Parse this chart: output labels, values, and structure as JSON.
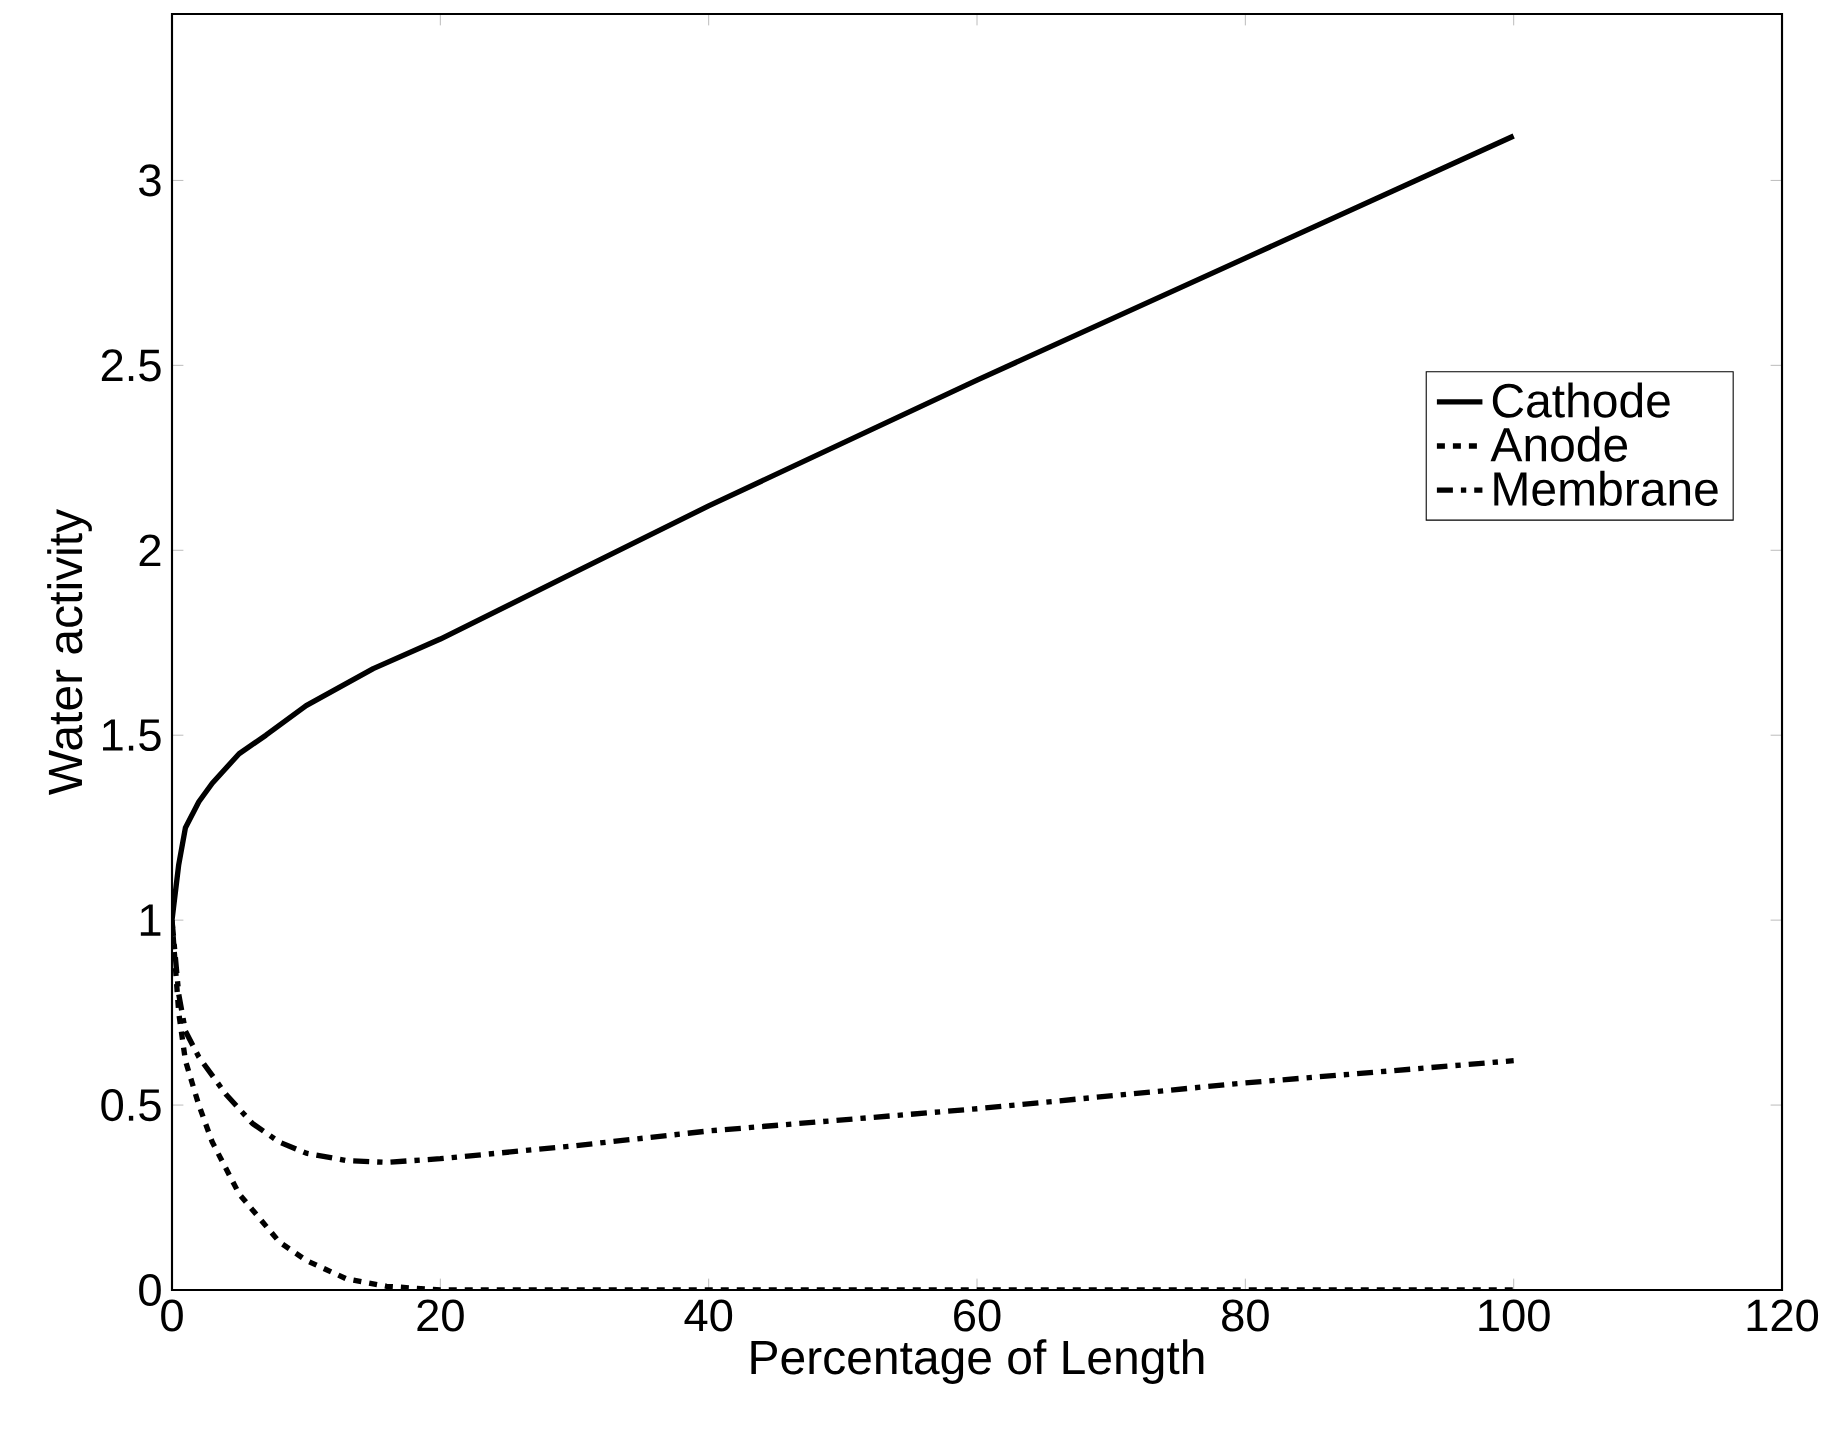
{
  "chart_data": {
    "type": "line",
    "xlabel": "Percentage of Length",
    "ylabel": "Water activity",
    "xlim": [
      0,
      120
    ],
    "xticks": [
      0,
      20,
      40,
      60,
      80,
      100,
      120
    ],
    "ylim": [
      0,
      3.45
    ],
    "yticks": [
      0,
      0.5,
      1,
      1.5,
      2,
      2.5,
      3
    ],
    "grid": false,
    "legend": "right",
    "marker": "none",
    "series": [
      {
        "name": "Cathode",
        "color": "#000000",
        "line_style": "solid",
        "x": [
          0,
          0.5,
          1,
          2,
          3,
          5,
          7,
          10,
          15,
          20,
          30,
          40,
          60,
          80,
          100
        ],
        "values": [
          1,
          1.15,
          1.25,
          1.32,
          1.37,
          1.45,
          1.5,
          1.58,
          1.68,
          1.76,
          1.94,
          2.12,
          2.46,
          2.79,
          3.12
        ]
      },
      {
        "name": "Anode",
        "color": "#000000",
        "line_style": "dashed",
        "x": [
          0,
          0.5,
          1,
          2,
          3,
          5,
          8,
          10,
          13,
          16,
          20,
          40,
          60,
          80,
          100
        ],
        "values": [
          1,
          0.75,
          0.62,
          0.5,
          0.4,
          0.26,
          0.13,
          0.08,
          0.03,
          0.01,
          0,
          0,
          0,
          0,
          0
        ]
      },
      {
        "name": "Membrane",
        "color": "#000000",
        "line_style": "dashdot",
        "x": [
          0,
          0.5,
          1,
          2,
          4,
          6,
          8,
          10,
          13,
          16,
          20,
          30,
          40,
          60,
          80,
          100
        ],
        "values": [
          1,
          0.8,
          0.7,
          0.63,
          0.53,
          0.45,
          0.4,
          0.37,
          0.35,
          0.345,
          0.355,
          0.39,
          0.43,
          0.49,
          0.56,
          0.62
        ]
      }
    ]
  }
}
